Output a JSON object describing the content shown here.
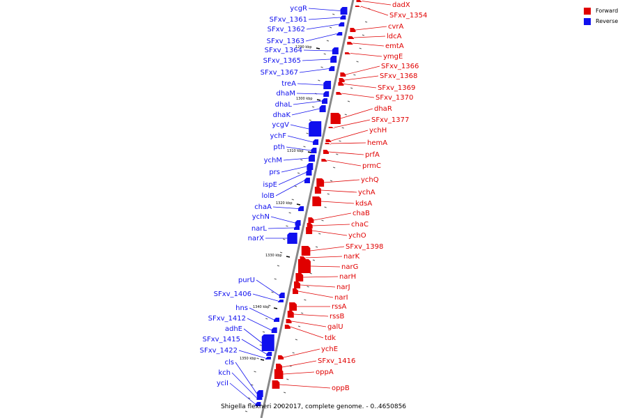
{
  "legend": {
    "forward_label": "Forward",
    "reverse_label": "Reverse",
    "forward_color": "#e00000",
    "reverse_color": "#1010ee"
  },
  "caption": "Shigella flexneri 2002017, complete genome. - 0..4650856",
  "axis_color": "#888888",
  "ticks": [
    "1290 kbp",
    "1300 kbp",
    "1310 kbp",
    "1320 kbp",
    "1330 kbp",
    "1340 kbp",
    "1350 kbp"
  ],
  "genes": {
    "reverse": [
      "ycgR",
      "SFxv_1361",
      "SFxv_1362",
      "SFxv_1363",
      "SFxv_1364",
      "SFxv_1365",
      "SFxv_1367",
      "treA",
      "dhaM",
      "dhaL",
      "dhaK",
      "ycgV",
      "ychF",
      "pth",
      "ychM",
      "prs",
      "ispE",
      "lolB",
      "chaA",
      "ychN",
      "narL",
      "narX",
      "purU",
      "SFxv_1406",
      "hns",
      "SFxv_1412",
      "adhE",
      "SFxv_1415",
      "SFxv_1422",
      "cls",
      "kch",
      "yciI"
    ],
    "forward": [
      "dadX",
      "SFxv_1354",
      "cvrA",
      "ldcA",
      "emtA",
      "ymgE",
      "SFxv_1366",
      "SFxv_1368",
      "SFxv_1369",
      "SFxv_1370",
      "dhaR",
      "SFxv_1377",
      "ychH",
      "hemA",
      "prfA",
      "prmC",
      "ychQ",
      "ychA",
      "kdsA",
      "chaB",
      "chaC",
      "ychO",
      "SFxv_1398",
      "narK",
      "narG",
      "narH",
      "narJ",
      "narI",
      "rssA",
      "rssB",
      "galU",
      "tdk",
      "ychE",
      "SFxv_1416",
      "oppA",
      "oppB"
    ]
  }
}
